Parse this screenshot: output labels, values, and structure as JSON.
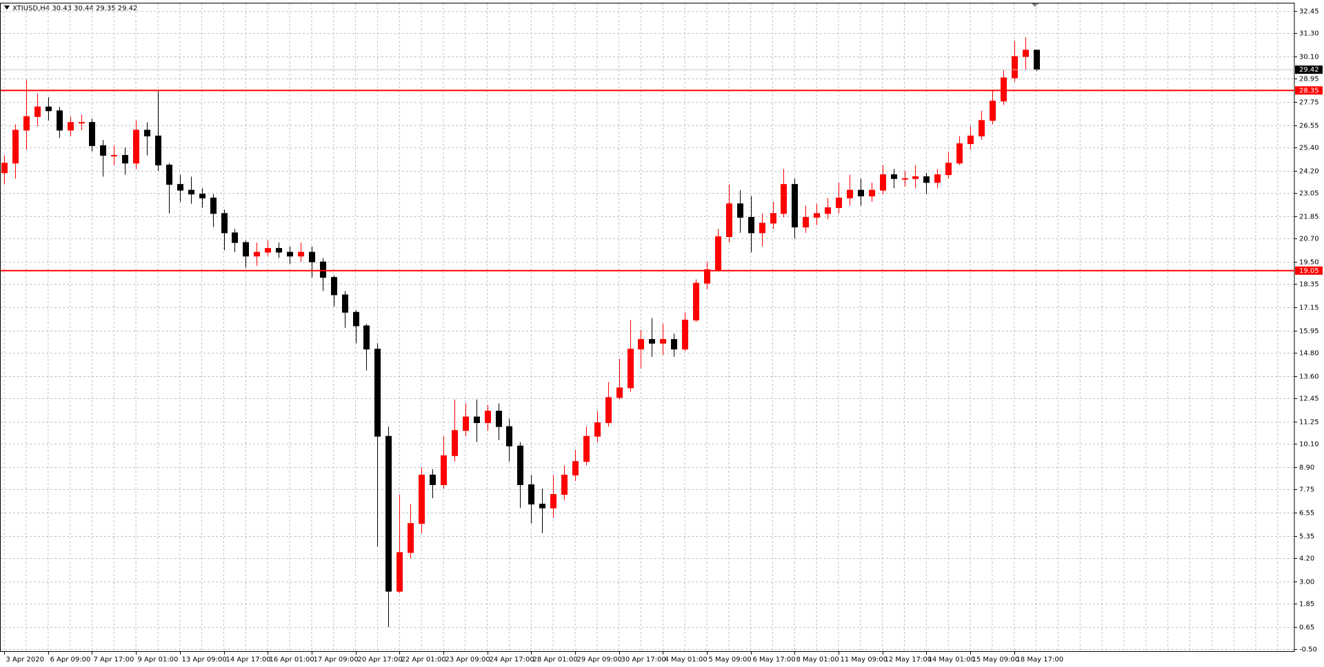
{
  "chart_data": {
    "type": "candlestick",
    "title": "XTIUSD,H4  30.43 30.44 29.35 29.42",
    "categories": [
      "3 Apr 2020",
      null,
      null,
      null,
      "6 Apr 09:00",
      null,
      null,
      null,
      "7 Apr 17:00",
      null,
      null,
      null,
      "9 Apr 01:00",
      null,
      null,
      null,
      "13 Apr 09:00",
      null,
      null,
      null,
      "14 Apr 17:00",
      null,
      null,
      null,
      "16 Apr 01:00",
      null,
      null,
      null,
      "17 Apr 09:00",
      null,
      null,
      null,
      "20 Apr 17:00",
      null,
      null,
      null,
      "22 Apr 01:00",
      null,
      null,
      null,
      "23 Apr 09:00",
      null,
      null,
      null,
      "24 Apr 17:00",
      null,
      null,
      null,
      "28 Apr 01:00",
      null,
      null,
      null,
      "29 Apr 09:00",
      null,
      null,
      null,
      "30 Apr 17:00",
      null,
      null,
      null,
      "4 May 01:00",
      null,
      null,
      null,
      "5 May 09:00",
      null,
      null,
      null,
      "6 May 17:00",
      null,
      null,
      null,
      "8 May 01:00",
      null,
      null,
      null,
      "11 May 09:00",
      null,
      null,
      null,
      "12 May 17:00",
      null,
      null,
      null,
      "14 May 01:00",
      null,
      null,
      null,
      "15 May 09:00",
      null,
      null,
      null,
      "18 May 17:00",
      null,
      null
    ],
    "open": [
      24.1,
      24.6,
      26.3,
      27.0,
      27.5,
      27.3,
      26.3,
      26.7,
      26.7,
      25.5,
      25.0,
      25.0,
      24.6,
      26.3,
      26.0,
      24.5,
      23.5,
      23.2,
      23.0,
      22.8,
      22.0,
      21.0,
      20.5,
      19.8,
      20.0,
      20.2,
      20.0,
      19.8,
      20.0,
      19.5,
      18.7,
      17.8,
      16.9,
      16.2,
      15.0,
      10.5,
      2.5,
      4.5,
      6.0,
      8.5,
      8.0,
      9.5,
      10.8,
      11.5,
      11.2,
      11.8,
      11.0,
      10.0,
      8.0,
      7.0,
      6.8,
      7.5,
      8.5,
      9.2,
      10.5,
      11.2,
      12.5,
      13.0,
      15.0,
      15.5,
      15.3,
      15.5,
      15.0,
      16.5,
      18.4,
      19.1,
      20.8,
      22.5,
      21.8,
      21.0,
      21.5,
      22.0,
      23.5,
      21.3,
      21.8,
      22.0,
      22.3,
      22.8,
      23.2,
      22.9,
      23.2,
      24.0,
      23.8,
      23.8,
      23.9,
      23.6,
      24.0,
      24.6,
      25.6,
      26.0,
      26.8,
      27.8,
      29.0,
      30.1,
      30.43
    ],
    "high": [
      25.0,
      26.6,
      28.9,
      28.2,
      28.0,
      27.5,
      27.0,
      27.1,
      26.9,
      25.8,
      25.5,
      25.4,
      26.8,
      26.7,
      28.3,
      24.6,
      24.0,
      23.9,
      23.3,
      23.0,
      22.2,
      21.2,
      20.6,
      20.5,
      20.6,
      20.5,
      20.3,
      20.5,
      20.3,
      19.7,
      18.8,
      18.0,
      17.0,
      16.3,
      15.3,
      11.0,
      7.5,
      7.0,
      8.9,
      8.8,
      10.5,
      12.4,
      12.2,
      12.4,
      12.1,
      12.2,
      11.4,
      10.2,
      8.5,
      7.8,
      8.5,
      9.0,
      9.8,
      11.0,
      11.8,
      13.3,
      14.5,
      16.5,
      16.0,
      16.6,
      16.3,
      15.8,
      16.9,
      18.6,
      19.5,
      21.2,
      23.5,
      23.2,
      22.9,
      22.0,
      22.6,
      24.3,
      23.8,
      22.4,
      22.5,
      22.8,
      23.6,
      24.0,
      23.8,
      23.6,
      24.5,
      24.3,
      24.2,
      24.5,
      24.1,
      24.3,
      25.2,
      26.0,
      26.5,
      27.3,
      28.4,
      29.4,
      30.9,
      31.1,
      30.44
    ],
    "low": [
      23.5,
      23.8,
      25.3,
      26.5,
      26.8,
      25.9,
      26.0,
      26.3,
      25.2,
      23.9,
      24.5,
      24.0,
      24.3,
      25.0,
      24.2,
      22.0,
      22.6,
      22.5,
      22.3,
      21.3,
      20.1,
      20.0,
      19.2,
      19.3,
      19.8,
      19.7,
      19.4,
      19.5,
      18.7,
      18.0,
      17.2,
      16.1,
      15.3,
      13.9,
      4.8,
      0.65,
      2.4,
      4.2,
      5.5,
      7.3,
      7.8,
      9.2,
      10.5,
      10.2,
      10.8,
      10.3,
      9.2,
      6.8,
      6.0,
      5.5,
      6.3,
      7.2,
      8.2,
      9.0,
      10.2,
      11.0,
      12.4,
      12.8,
      14.0,
      14.6,
      14.7,
      14.6,
      14.9,
      16.4,
      18.1,
      19.0,
      20.5,
      21.0,
      20.0,
      20.3,
      21.2,
      21.8,
      20.7,
      21.0,
      21.4,
      21.7,
      22.0,
      22.4,
      22.4,
      22.6,
      23.0,
      23.3,
      23.4,
      23.3,
      23.0,
      23.3,
      23.8,
      24.5,
      25.3,
      25.8,
      26.6,
      27.6,
      28.8,
      29.4,
      29.35
    ],
    "close": [
      24.6,
      26.3,
      27.0,
      27.5,
      27.3,
      26.3,
      26.7,
      26.7,
      25.5,
      25.0,
      25.0,
      24.6,
      26.3,
      26.0,
      24.5,
      23.5,
      23.2,
      23.0,
      22.8,
      22.0,
      21.0,
      20.5,
      19.8,
      20.0,
      20.2,
      20.0,
      19.8,
      20.0,
      19.5,
      18.7,
      17.8,
      16.9,
      16.2,
      15.0,
      10.5,
      2.5,
      4.5,
      6.0,
      8.5,
      8.0,
      9.5,
      10.8,
      11.5,
      11.2,
      11.8,
      11.0,
      10.0,
      8.0,
      7.0,
      6.8,
      7.5,
      8.5,
      9.2,
      10.5,
      11.2,
      12.5,
      13.0,
      15.0,
      15.5,
      15.3,
      15.5,
      15.0,
      16.5,
      18.4,
      19.1,
      20.8,
      22.5,
      21.8,
      21.0,
      21.5,
      22.0,
      23.5,
      21.3,
      21.8,
      22.0,
      22.3,
      22.8,
      23.2,
      22.9,
      23.2,
      24.0,
      23.8,
      23.8,
      23.9,
      23.6,
      24.0,
      24.6,
      25.6,
      26.0,
      26.8,
      27.8,
      29.0,
      30.1,
      30.43,
      29.42
    ],
    "up_color": "#ff0000",
    "down_color": "#000000",
    "grid": true,
    "grid_color": "#c0c0c0",
    "ylim": [
      -0.59,
      32.84
    ],
    "yticks": [
      32.45,
      {
        "value": 31.3,
        "label": "31.30"
      },
      {
        "value": 30.1,
        "label": "30.10"
      },
      28.95,
      27.75,
      26.55,
      {
        "value": 25.4,
        "label": "25.40"
      },
      {
        "value": 24.2,
        "label": "24.20"
      },
      23.05,
      21.85,
      {
        "value": 20.7,
        "label": "20.70"
      },
      {
        "value": 19.5,
        "label": "19.50"
      },
      18.35,
      17.15,
      15.95,
      {
        "value": 14.8,
        "label": "14.80"
      },
      {
        "value": 13.6,
        "label": "13.60"
      },
      12.45,
      11.25,
      {
        "value": 10.1,
        "label": "10.10"
      },
      {
        "value": 8.9,
        "label": "8.90"
      },
      7.75,
      6.55,
      5.35,
      {
        "value": 4.2,
        "label": "4.20"
      },
      {
        "value": 3,
        "label": "3.00"
      },
      1.85,
      0.65,
      {
        "value": -0.5,
        "label": "-0.50"
      }
    ],
    "hlines": [
      {
        "value": 28.35,
        "color": "#ff0000"
      },
      {
        "value": 19.05,
        "color": "#ff0000"
      }
    ],
    "current_price": {
      "value": 29.42,
      "color": "#c0c0c0"
    }
  }
}
